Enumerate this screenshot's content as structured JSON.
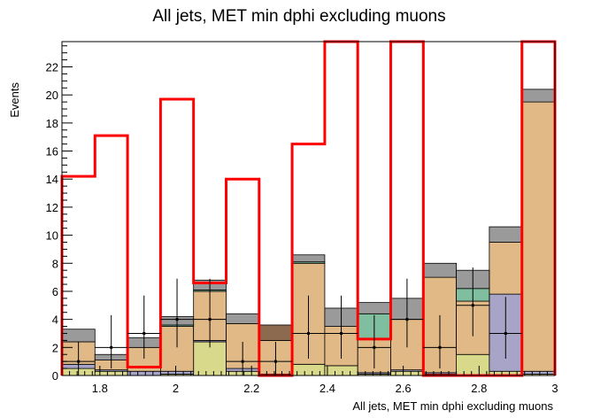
{
  "chart_data": {
    "type": "stacked-histogram",
    "title": "All jets, MET min dphi excluding muons",
    "xlabel": "All jets, MET min dphi excluding muons",
    "ylabel": "Events",
    "xlim": [
      1.7,
      3.0
    ],
    "ylim": [
      0,
      23.8
    ],
    "x_ticks": [
      1.8,
      2.0,
      2.2,
      2.4,
      2.6,
      2.8,
      3.0
    ],
    "x_tick_labels": [
      "1.8",
      "2",
      "2.2",
      "2.4",
      "2.6",
      "2.8",
      "3"
    ],
    "y_ticks": [
      0,
      2,
      4,
      6,
      8,
      10,
      12,
      14,
      16,
      18,
      20,
      22
    ],
    "y_tick_labels": [
      "0",
      "2",
      "4",
      "6",
      "8",
      "10",
      "12",
      "14",
      "16",
      "18",
      "20",
      "22"
    ],
    "bin_edges": [
      1.7,
      1.787,
      1.873,
      1.96,
      2.047,
      2.133,
      2.22,
      2.307,
      2.393,
      2.48,
      2.567,
      2.653,
      2.74,
      2.827,
      2.913,
      3.0
    ],
    "stack": [
      {
        "color": "#d9d98c",
        "values": [
          0.5,
          0.3,
          0.0,
          0.1,
          2.4,
          0.3,
          0.0,
          0.8,
          0.7,
          0.1,
          0.3,
          0.1,
          1.5,
          0.3,
          0.1
        ]
      },
      {
        "color": "#a8a4c8",
        "values": [
          0.3,
          0.1,
          0.3,
          0.2,
          0.1,
          0.2,
          0.1,
          0.0,
          0.0,
          0.1,
          0.1,
          0.1,
          0.0,
          5.5,
          0.2
        ]
      },
      {
        "color": "#e0b987",
        "values": [
          1.6,
          0.7,
          1.7,
          3.2,
          3.5,
          3.2,
          2.4,
          7.2,
          2.8,
          2.4,
          3.6,
          6.8,
          3.8,
          3.7,
          19.2
        ]
      },
      {
        "color": "#8b6a4f",
        "values": [
          0.0,
          0.0,
          0.0,
          0.0,
          0.0,
          0.0,
          1.1,
          0.0,
          0.0,
          0.0,
          0.0,
          0.0,
          0.0,
          0.0,
          0.0
        ]
      },
      {
        "color": "#7fbf9f",
        "values": [
          0.0,
          0.0,
          0.0,
          0.1,
          0.1,
          0.0,
          0.0,
          0.1,
          0.0,
          1.8,
          0.0,
          0.0,
          0.9,
          0.0,
          0.0
        ]
      },
      {
        "color": "#9a9a9a",
        "values": [
          0.9,
          0.4,
          0.7,
          0.6,
          0.7,
          0.7,
          0.0,
          0.5,
          1.3,
          0.8,
          1.5,
          1.0,
          1.3,
          1.1,
          0.9
        ]
      }
    ],
    "signal": {
      "color": "#ff0000",
      "values": [
        14.2,
        17.1,
        0.6,
        19.7,
        6.6,
        14.0,
        0.0,
        16.5,
        30.0,
        2.6,
        30.0,
        0.0,
        0.0,
        0.0,
        30.0
      ]
    },
    "data_points": {
      "y": [
        1,
        2,
        3,
        4,
        4,
        1,
        1,
        3,
        3,
        2,
        4,
        2,
        5,
        3,
        0
      ],
      "err_up": [
        1.4,
        2.3,
        2.7,
        2.9,
        2.9,
        1.4,
        1.4,
        2.7,
        2.7,
        2.3,
        2.9,
        2.3,
        2.7,
        2.6,
        0.0
      ],
      "err_down": [
        1.0,
        1.5,
        1.8,
        2.0,
        2.0,
        1.0,
        1.0,
        1.8,
        1.8,
        1.5,
        2.0,
        1.5,
        2.2,
        1.8,
        0.0
      ]
    },
    "grid": false,
    "legend": "none"
  }
}
